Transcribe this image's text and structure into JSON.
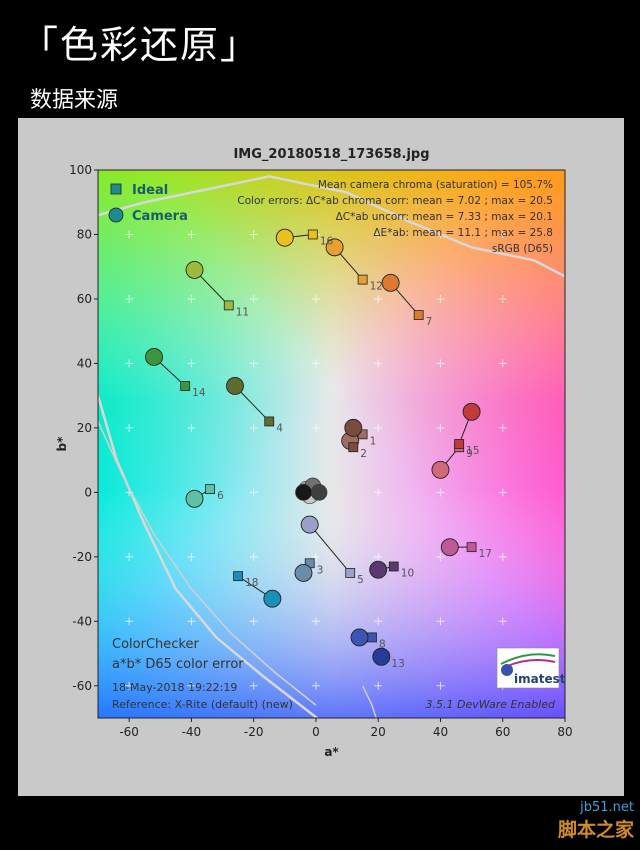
{
  "header": {
    "title": "「色彩还原」",
    "subtitle": "数据来源"
  },
  "watermark": {
    "line1": "jb51.net",
    "line2": "脚本之家"
  },
  "colors": {
    "ideal": "#1e8c8c",
    "camera": "#1e8c8c"
  },
  "chart_data": {
    "type": "scatter",
    "title": "IMG_20180518_173658.jpg",
    "xlabel": "a*",
    "ylabel": "b*",
    "xlim": [
      -70,
      80
    ],
    "ylim": [
      -70,
      100
    ],
    "xticks": [
      -60,
      -40,
      -20,
      0,
      20,
      40,
      60,
      80
    ],
    "yticks": [
      -60,
      -40,
      -20,
      0,
      20,
      40,
      60,
      80,
      100
    ],
    "legend": {
      "position": "top-left",
      "ideal_label": "Ideal",
      "camera_label": "Camera"
    },
    "stats": [
      "Mean camera chroma (saturation) = 105.7%",
      "Color errors: ΔC*ab chroma corr:  mean = 7.02 ;  max = 20.5",
      "ΔC*ab uncorr:  mean = 7.33 ;  max = 20.1",
      "ΔE*ab:  mean = 11.1 ;  max = 25.8",
      "sRGB (D65)"
    ],
    "footer": {
      "heading": "ColorChecker",
      "subheading": "a*b* D65 color error",
      "date": "18-May-2018 19:22:19",
      "reference": "Reference: X-Rite (default) (new)",
      "version": "3.5.1  DevWare Enabled",
      "logo_text": "imatest"
    },
    "patches": [
      {
        "id": "1",
        "ideal": [
          15,
          18
        ],
        "camera": [
          11,
          16
        ],
        "color": "#a06e60"
      },
      {
        "id": "2",
        "ideal": [
          12,
          14
        ],
        "camera": [
          12,
          20
        ],
        "color": "#7a4c40"
      },
      {
        "id": "3",
        "ideal": [
          -2,
          -22
        ],
        "camera": [
          -4,
          -25
        ],
        "color": "#6a8ca8"
      },
      {
        "id": "4",
        "ideal": [
          -15,
          22
        ],
        "camera": [
          -26,
          33
        ],
        "color": "#5f6b2f"
      },
      {
        "id": "5",
        "ideal": [
          11,
          -25
        ],
        "camera": [
          -2,
          -10
        ],
        "color": "#9aa0c8"
      },
      {
        "id": "6",
        "ideal": [
          -34,
          1
        ],
        "camera": [
          -39,
          -2
        ],
        "color": "#5fc0a8"
      },
      {
        "id": "7",
        "ideal": [
          33,
          55
        ],
        "camera": [
          24,
          65
        ],
        "color": "#dd7a30"
      },
      {
        "id": "8",
        "ideal": [
          18,
          -45
        ],
        "camera": [
          14,
          -45
        ],
        "color": "#3c55b0"
      },
      {
        "id": "9",
        "ideal": [
          46,
          14
        ],
        "camera": [
          40,
          7
        ],
        "color": "#d06a7a"
      },
      {
        "id": "10",
        "ideal": [
          25,
          -23
        ],
        "camera": [
          20,
          -24
        ],
        "color": "#5a3870"
      },
      {
        "id": "11",
        "ideal": [
          -28,
          58
        ],
        "camera": [
          -39,
          69
        ],
        "color": "#9cba3c"
      },
      {
        "id": "12",
        "ideal": [
          15,
          66
        ],
        "camera": [
          6,
          76
        ],
        "color": "#e8a030"
      },
      {
        "id": "13",
        "ideal": [
          22,
          -51
        ],
        "camera": [
          21,
          -51
        ],
        "color": "#263c98"
      },
      {
        "id": "14",
        "ideal": [
          -42,
          33
        ],
        "camera": [
          -52,
          42
        ],
        "color": "#3c9640"
      },
      {
        "id": "15",
        "ideal": [
          46,
          15
        ],
        "camera": [
          50,
          25
        ],
        "color": "#c23a3a"
      },
      {
        "id": "16",
        "ideal": [
          -1,
          80
        ],
        "camera": [
          -10,
          79
        ],
        "color": "#e8c020"
      },
      {
        "id": "17",
        "ideal": [
          50,
          -17
        ],
        "camera": [
          43,
          -17
        ],
        "color": "#c05896"
      },
      {
        "id": "18",
        "ideal": [
          -25,
          -26
        ],
        "camera": [
          -14,
          -33
        ],
        "color": "#1890b8"
      }
    ],
    "neutrals": [
      [
        0,
        0
      ],
      [
        -2,
        -1
      ],
      [
        -3,
        1
      ],
      [
        -1,
        2
      ],
      [
        1,
        0
      ],
      [
        -4,
        0
      ]
    ]
  }
}
